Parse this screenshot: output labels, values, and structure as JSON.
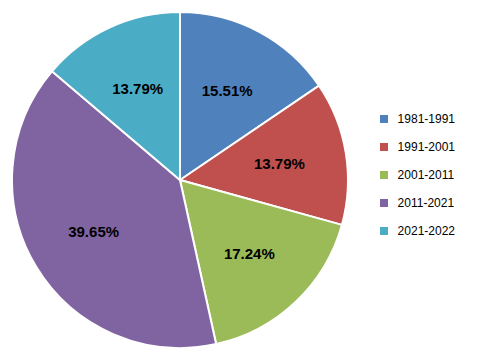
{
  "chart_data": {
    "type": "pie",
    "categories": [
      "1981-1991",
      "1991-2001",
      "2001-2011",
      "2011-2021",
      "2021-2022"
    ],
    "values": [
      15.51,
      13.79,
      17.24,
      39.65,
      13.79
    ],
    "value_labels": [
      "15.51%",
      "13.79%",
      "17.24%",
      "39.65%",
      "13.79%"
    ],
    "colors": [
      "#4f81bd",
      "#c0504d",
      "#9bbb59",
      "#8064a2",
      "#4bacc6"
    ],
    "data_labels": true,
    "legend": "right"
  }
}
